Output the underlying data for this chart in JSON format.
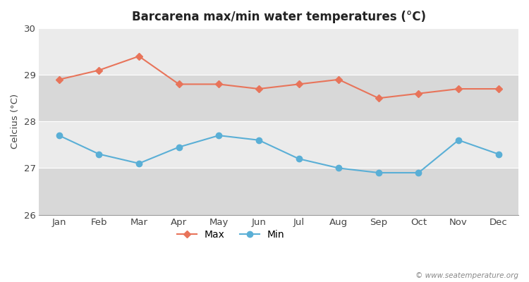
{
  "title": "Barcarena max/min water temperatures (°C)",
  "ylabel": "Celcius (°C)",
  "months": [
    "Jan",
    "Feb",
    "Mar",
    "Apr",
    "May",
    "Jun",
    "Jul",
    "Aug",
    "Sep",
    "Oct",
    "Nov",
    "Dec"
  ],
  "max_temps": [
    28.9,
    29.1,
    29.4,
    28.8,
    28.8,
    28.7,
    28.8,
    28.9,
    28.5,
    28.6,
    28.7,
    28.7
  ],
  "min_temps": [
    27.7,
    27.3,
    27.1,
    27.45,
    27.7,
    27.6,
    27.2,
    27.0,
    26.9,
    26.9,
    27.6,
    27.3
  ],
  "max_color": "#e8745a",
  "min_color": "#5aafd6",
  "ylim": [
    26,
    30
  ],
  "yticks": [
    26,
    27,
    28,
    29,
    30
  ],
  "fig_bg_color": "#ffffff",
  "band_light": "#ebebeb",
  "band_dark": "#d8d8d8",
  "grid_color": "#ffffff",
  "watermark": "© www.seatemperature.org",
  "legend_max": "Max",
  "legend_min": "Min"
}
